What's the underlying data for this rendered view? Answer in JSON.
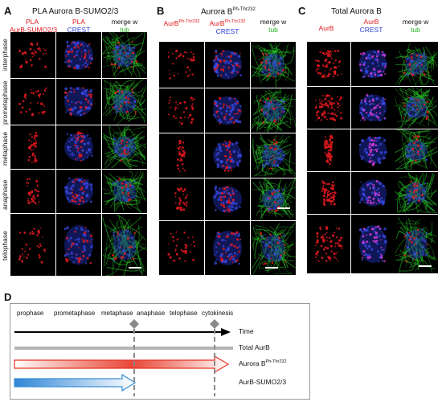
{
  "panels": {
    "A": {
      "letter": "A",
      "title": "PLA  Aurora B-SUMO2/3",
      "col1_line1": "PLA",
      "col1_line2": "AurB-SUMO2/3",
      "col2_line1": "PLA",
      "col2_line2": "CREST",
      "col3_line1": "merge w",
      "col3_line2": "tub",
      "rows": [
        "interphase",
        "prometaphase",
        "metaphase",
        "anaphase",
        "telophase"
      ]
    },
    "B": {
      "letter": "B",
      "title_main": "Aurora B",
      "title_sup": "Ph-Thr232",
      "col1_main": "AurB",
      "col1_sup": "Ph-Thr232",
      "col2_line1_main": "AurB",
      "col2_line1_sup": "Ph-Thr232",
      "col2_line2": "CREST",
      "col3_line1": "merge w",
      "col3_line2": "tub"
    },
    "C": {
      "letter": "C",
      "title": "Total Aurora B",
      "col1": "AurB",
      "col2_line1": "AurB",
      "col2_line2": "CREST",
      "col3_line1": "merge w",
      "col3_line2": "tub"
    },
    "D": {
      "letter": "D",
      "phases": [
        "prophase",
        "prometaphase",
        "metaphase",
        "anaphase",
        "telophase",
        "cytokinesis"
      ],
      "time_label": "Time",
      "total_label": "Total AurB",
      "phospho_main": "Aurora B",
      "phospho_sup": "Ph-Thr232",
      "sumo_label": "AurB-SUMO2/3"
    }
  },
  "colors": {
    "red": "#e0191e",
    "blue": "#2b3fd6",
    "green": "#22b422",
    "grey_bar": "#b5b5b5",
    "phospho_arrow": "#e53322",
    "sumo_arrow": "#3a8fd8",
    "dashed": "#888888"
  }
}
